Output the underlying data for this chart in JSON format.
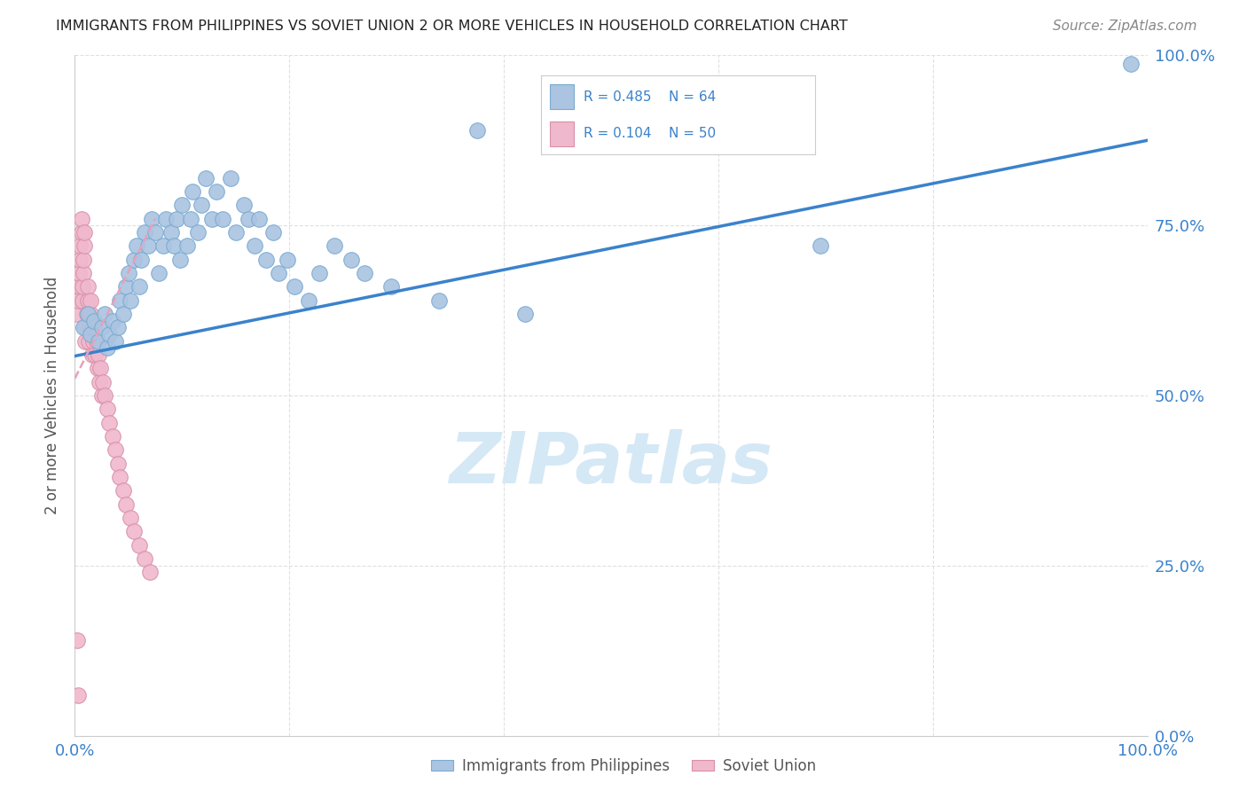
{
  "title": "IMMIGRANTS FROM PHILIPPINES VS SOVIET UNION 2 OR MORE VEHICLES IN HOUSEHOLD CORRELATION CHART",
  "source": "Source: ZipAtlas.com",
  "ylabel": "2 or more Vehicles in Household",
  "xlim": [
    0,
    1
  ],
  "ylim": [
    0,
    1
  ],
  "legend_entries": [
    {
      "label": "Immigrants from Philippines",
      "R": "0.485",
      "N": "64",
      "color": "#aac4e2",
      "edge": "#7aaad0"
    },
    {
      "label": "Soviet Union",
      "R": "0.104",
      "N": "50",
      "color": "#f0b8cc",
      "edge": "#d890a8"
    }
  ],
  "phil_x": [
    0.008,
    0.012,
    0.015,
    0.018,
    0.022,
    0.025,
    0.028,
    0.03,
    0.032,
    0.035,
    0.038,
    0.04,
    0.042,
    0.045,
    0.048,
    0.05,
    0.052,
    0.055,
    0.058,
    0.06,
    0.062,
    0.065,
    0.068,
    0.072,
    0.075,
    0.078,
    0.082,
    0.085,
    0.09,
    0.092,
    0.095,
    0.098,
    0.1,
    0.105,
    0.108,
    0.11,
    0.115,
    0.118,
    0.122,
    0.128,
    0.132,
    0.138,
    0.145,
    0.15,
    0.158,
    0.162,
    0.168,
    0.172,
    0.178,
    0.185,
    0.19,
    0.198,
    0.205,
    0.218,
    0.228,
    0.242,
    0.258,
    0.27,
    0.295,
    0.34,
    0.375,
    0.42,
    0.695,
    0.985
  ],
  "phil_y": [
    0.6,
    0.62,
    0.59,
    0.61,
    0.58,
    0.6,
    0.62,
    0.57,
    0.59,
    0.61,
    0.58,
    0.6,
    0.64,
    0.62,
    0.66,
    0.68,
    0.64,
    0.7,
    0.72,
    0.66,
    0.7,
    0.74,
    0.72,
    0.76,
    0.74,
    0.68,
    0.72,
    0.76,
    0.74,
    0.72,
    0.76,
    0.7,
    0.78,
    0.72,
    0.76,
    0.8,
    0.74,
    0.78,
    0.82,
    0.76,
    0.8,
    0.76,
    0.82,
    0.74,
    0.78,
    0.76,
    0.72,
    0.76,
    0.7,
    0.74,
    0.68,
    0.7,
    0.66,
    0.64,
    0.68,
    0.72,
    0.7,
    0.68,
    0.66,
    0.64,
    0.89,
    0.62,
    0.72,
    0.988
  ],
  "sov_x": [
    0.002,
    0.003,
    0.004,
    0.004,
    0.005,
    0.005,
    0.006,
    0.006,
    0.007,
    0.007,
    0.008,
    0.008,
    0.009,
    0.009,
    0.01,
    0.01,
    0.011,
    0.012,
    0.012,
    0.013,
    0.014,
    0.015,
    0.015,
    0.016,
    0.017,
    0.018,
    0.019,
    0.02,
    0.021,
    0.022,
    0.023,
    0.024,
    0.025,
    0.026,
    0.028,
    0.03,
    0.032,
    0.035,
    0.038,
    0.04,
    0.042,
    0.045,
    0.048,
    0.052,
    0.055,
    0.06,
    0.065,
    0.07,
    0.002,
    0.003
  ],
  "sov_y": [
    0.62,
    0.64,
    0.66,
    0.68,
    0.7,
    0.72,
    0.74,
    0.76,
    0.64,
    0.66,
    0.68,
    0.7,
    0.72,
    0.74,
    0.58,
    0.6,
    0.62,
    0.64,
    0.66,
    0.58,
    0.6,
    0.62,
    0.64,
    0.56,
    0.58,
    0.6,
    0.56,
    0.58,
    0.54,
    0.56,
    0.52,
    0.54,
    0.5,
    0.52,
    0.5,
    0.48,
    0.46,
    0.44,
    0.42,
    0.4,
    0.38,
    0.36,
    0.34,
    0.32,
    0.3,
    0.28,
    0.26,
    0.24,
    0.14,
    0.06
  ],
  "blue_line": [
    [
      0.0,
      0.558
    ],
    [
      1.0,
      0.875
    ]
  ],
  "pink_line": [
    [
      0.0,
      0.525
    ],
    [
      0.075,
      0.76
    ]
  ],
  "blue_line_color": "#3a82cc",
  "pink_line_color": "#e8a0b8",
  "grid_color": "#e0e0e0",
  "tick_color": "#3a82cc",
  "title_color": "#222222",
  "ylabel_color": "#555555",
  "source_color": "#888888",
  "watermark_color": "#d5e8f5",
  "background": "#ffffff"
}
